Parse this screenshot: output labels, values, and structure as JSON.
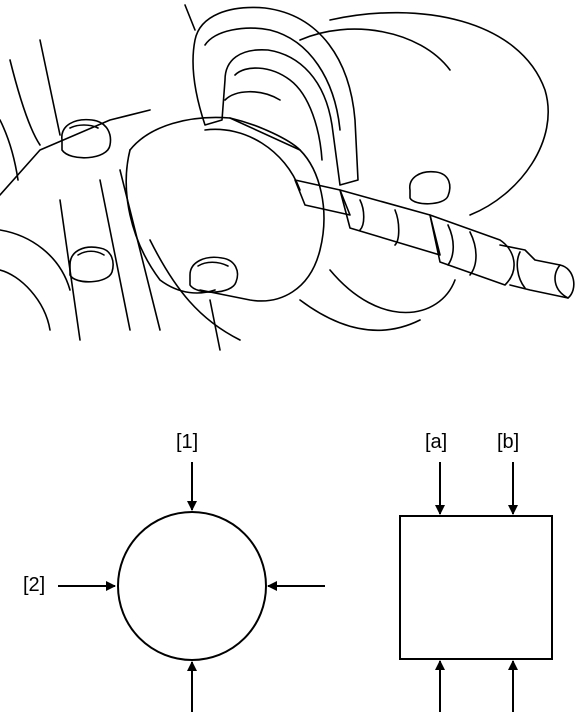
{
  "figure": {
    "illustration": "crankshaft-journal-micrometer-measurement",
    "labels": {
      "position_1": "[1]",
      "position_2": "[2]",
      "position_a": "[a]",
      "position_b": "[b]"
    },
    "colors": {
      "line": "#000000",
      "background": "#ffffff"
    }
  }
}
